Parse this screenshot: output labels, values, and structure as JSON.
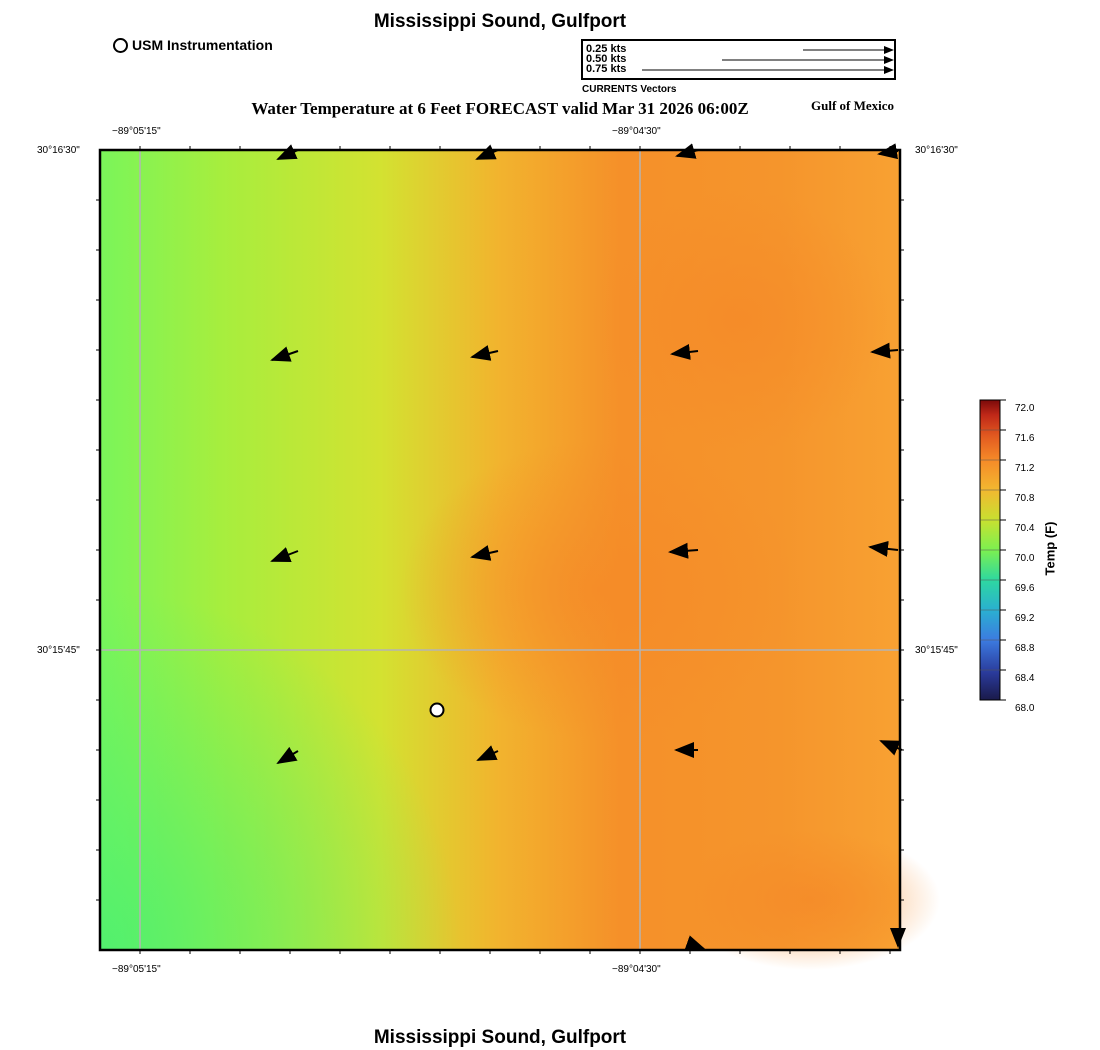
{
  "header": {
    "title": "Mississippi Sound, Gulfport",
    "instrument_legend": "USM Instrumentation"
  },
  "current_legend": {
    "speeds": [
      "0.25 kts",
      "0.50 kts",
      "0.75 kts"
    ],
    "caption": "CURRENTS Vectors"
  },
  "map": {
    "title": "Water Temperature at 6 Feet FORECAST valid Mar 31 2026 06:00Z",
    "region_label": "Gulf of Mexico",
    "x_ticks": [
      "−89°05'15\"",
      "−89°04'30\""
    ],
    "y_ticks": [
      "30°16'30\"",
      "30°15'45\""
    ]
  },
  "colorbar": {
    "label": "Temp (F)",
    "min": 68.0,
    "max": 72.0,
    "ticks": [
      "72.0",
      "71.6",
      "71.2",
      "70.8",
      "70.4",
      "70.0",
      "69.6",
      "69.2",
      "68.8",
      "68.4",
      "68.0"
    ],
    "colors": [
      "#1a1a4a",
      "#2a3a9a",
      "#3c7be0",
      "#2ab0d0",
      "#2ed8a0",
      "#7cf050",
      "#c8e030",
      "#f2b830",
      "#f58a28",
      "#e25a20",
      "#c02818",
      "#7a0a0a"
    ]
  },
  "footer": {
    "title": "Mississippi Sound, Gulfport"
  }
}
